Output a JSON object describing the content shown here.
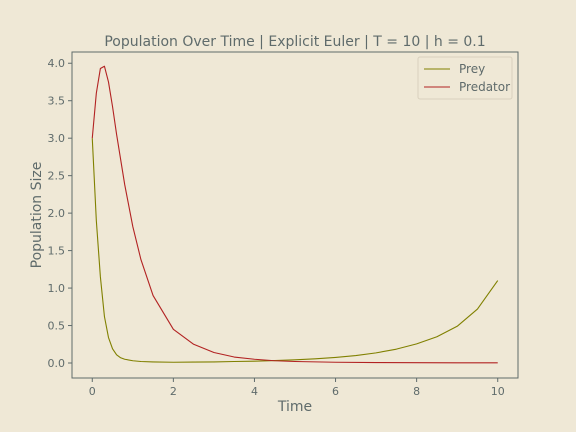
{
  "chart_data": {
    "type": "line",
    "title": "Population Over Time | Explicit Euler | T = 10 | h = 0.1",
    "xlabel": "Time",
    "ylabel": "Population Size",
    "xlim": [
      -0.5,
      10.5
    ],
    "ylim": [
      -0.2,
      4.15
    ],
    "xticks": [
      0,
      2,
      4,
      6,
      8,
      10
    ],
    "xtick_labels": [
      "0",
      "2",
      "4",
      "6",
      "8",
      "10"
    ],
    "yticks": [
      0.0,
      0.5,
      1.0,
      1.5,
      2.0,
      2.5,
      3.0,
      3.5,
      4.0
    ],
    "ytick_labels": [
      "0.0",
      "0.5",
      "1.0",
      "1.5",
      "2.0",
      "2.5",
      "3.0",
      "3.5",
      "4.0"
    ],
    "grid": false,
    "legend_position": "top-right",
    "series": [
      {
        "name": "Prey",
        "color": "#808000",
        "x": [
          0,
          0.1,
          0.2,
          0.3,
          0.4,
          0.5,
          0.6,
          0.7,
          0.8,
          1.0,
          1.2,
          1.5,
          2,
          2.5,
          3,
          3.5,
          4,
          4.5,
          5,
          5.5,
          6,
          6.5,
          7,
          7.5,
          8,
          8.5,
          9,
          9.5,
          10
        ],
        "y": [
          3.0,
          1.9,
          1.15,
          0.62,
          0.34,
          0.19,
          0.11,
          0.07,
          0.05,
          0.03,
          0.02,
          0.015,
          0.01,
          0.012,
          0.015,
          0.02,
          0.025,
          0.032,
          0.042,
          0.056,
          0.075,
          0.1,
          0.135,
          0.185,
          0.255,
          0.35,
          0.49,
          0.72,
          1.1
        ]
      },
      {
        "name": "Predator",
        "color": "#b22222",
        "x": [
          0,
          0.1,
          0.2,
          0.3,
          0.4,
          0.5,
          0.6,
          0.8,
          1.0,
          1.2,
          1.5,
          2,
          2.5,
          3,
          3.5,
          4,
          4.5,
          5,
          6,
          7,
          8,
          9,
          10
        ],
        "y": [
          3.0,
          3.6,
          3.93,
          3.96,
          3.75,
          3.42,
          3.05,
          2.38,
          1.82,
          1.38,
          0.9,
          0.45,
          0.25,
          0.14,
          0.08,
          0.05,
          0.03,
          0.02,
          0.01,
          0.006,
          0.004,
          0.003,
          0.002
        ]
      }
    ]
  }
}
